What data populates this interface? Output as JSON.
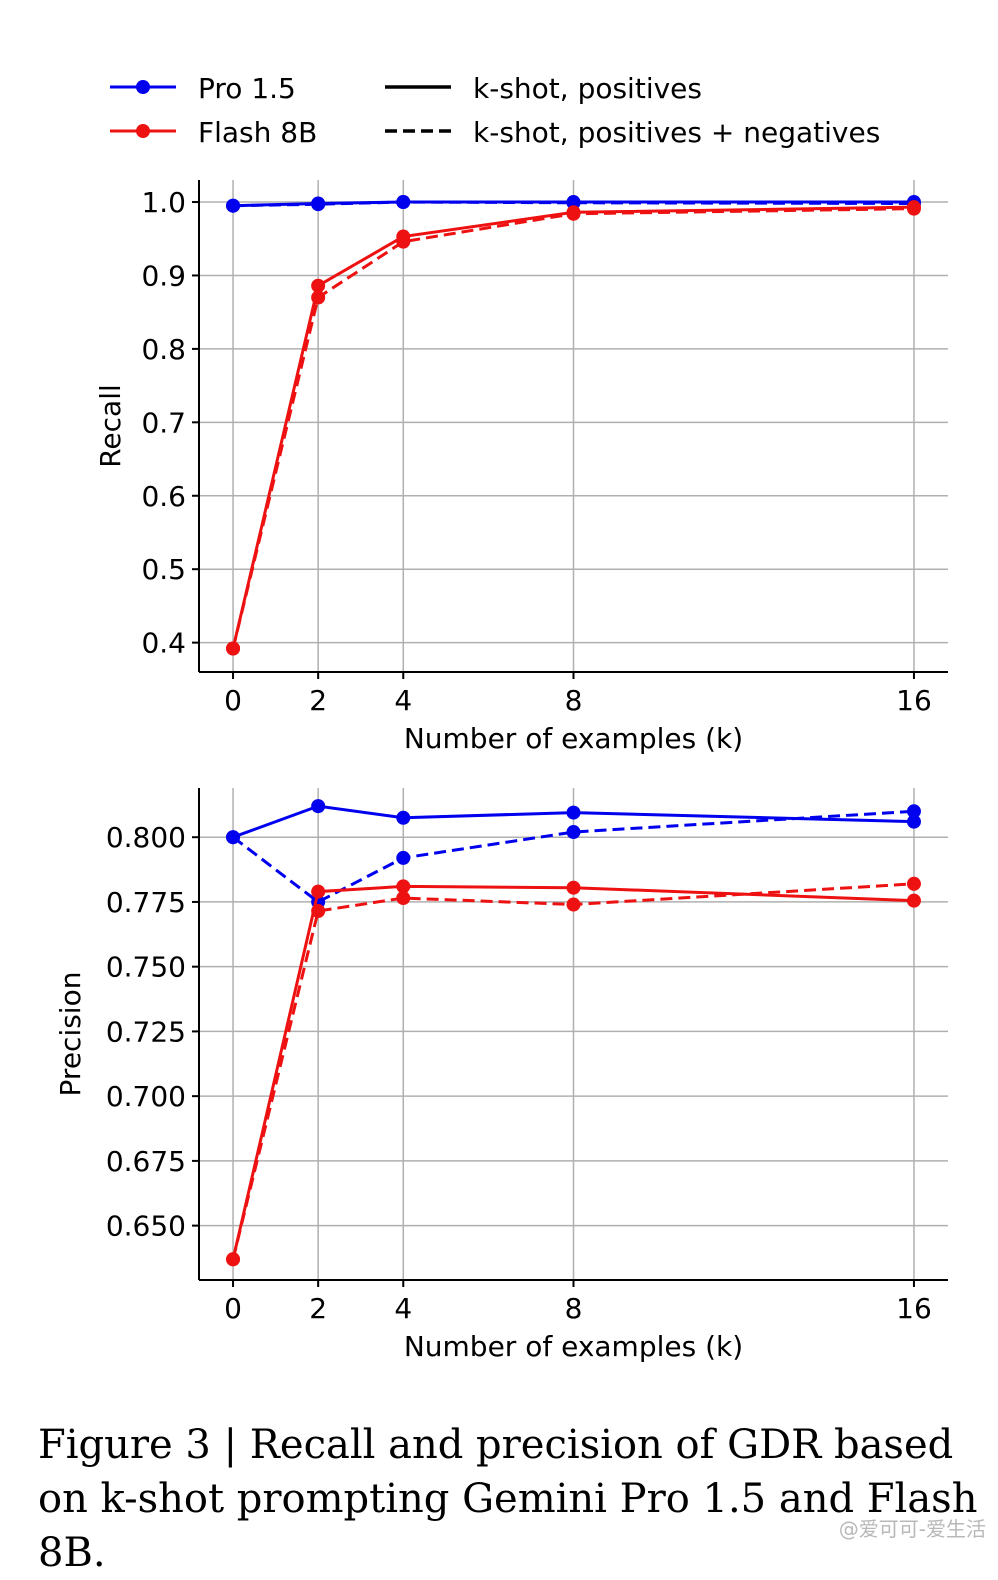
{
  "legend": {
    "models": [
      {
        "label": "Pro 1.5",
        "color": "#0000ee"
      },
      {
        "label": "Flash 8B",
        "color": "#ee1111"
      }
    ],
    "styles": [
      {
        "label": "k-shot, positives",
        "dash": "solid"
      },
      {
        "label": "k-shot, positives + negatives",
        "dash": "dashed"
      }
    ],
    "placement": "top"
  },
  "chart_data": [
    {
      "type": "line",
      "xlabel": "Number of examples (k)",
      "ylabel": "Recall",
      "x": [
        0,
        2,
        4,
        8,
        16
      ],
      "xticks": [
        "0",
        "2",
        "4",
        "8",
        "16"
      ],
      "yticks": [
        "0.4",
        "0.5",
        "0.6",
        "0.7",
        "0.8",
        "0.9",
        "1.0"
      ],
      "ylim": [
        0.36,
        1.03
      ],
      "xlim": [
        -0.8,
        16.8
      ],
      "grid": true,
      "series": [
        {
          "model": "Pro 1.5",
          "style": "k-shot, positives",
          "color": "#0000ee",
          "values": [
            0.995,
            0.998,
            1.0,
            1.0,
            1.0
          ]
        },
        {
          "model": "Pro 1.5",
          "style": "k-shot, positives + negatives",
          "color": "#0000ee",
          "values": [
            0.995,
            0.997,
            1.0,
            0.999,
            0.998
          ]
        },
        {
          "model": "Flash 8B",
          "style": "k-shot, positives",
          "color": "#ee1111",
          "values": [
            0.392,
            0.886,
            0.953,
            0.986,
            0.993
          ]
        },
        {
          "model": "Flash 8B",
          "style": "k-shot, positives + negatives",
          "color": "#ee1111",
          "values": [
            0.392,
            0.87,
            0.946,
            0.984,
            0.991
          ]
        }
      ]
    },
    {
      "type": "line",
      "xlabel": "Number of examples (k)",
      "ylabel": "Precision",
      "x": [
        0,
        2,
        4,
        8,
        16
      ],
      "xticks": [
        "0",
        "2",
        "4",
        "8",
        "16"
      ],
      "yticks": [
        "0.650",
        "0.675",
        "0.700",
        "0.725",
        "0.750",
        "0.775",
        "0.800"
      ],
      "ylim": [
        0.629,
        0.819
      ],
      "xlim": [
        -0.8,
        16.8
      ],
      "grid": true,
      "series": [
        {
          "model": "Pro 1.5",
          "style": "k-shot, positives",
          "color": "#0000ee",
          "values": [
            0.8,
            0.812,
            0.8075,
            0.8095,
            0.806
          ]
        },
        {
          "model": "Pro 1.5",
          "style": "k-shot, positives + negatives",
          "color": "#0000ee",
          "values": [
            0.8,
            0.775,
            0.792,
            0.802,
            0.81
          ]
        },
        {
          "model": "Flash 8B",
          "style": "k-shot, positives",
          "color": "#ee1111",
          "values": [
            0.637,
            0.779,
            0.781,
            0.7805,
            0.7755
          ]
        },
        {
          "model": "Flash 8B",
          "style": "k-shot, positives + negatives",
          "color": "#ee1111",
          "values": [
            0.637,
            0.7715,
            0.7765,
            0.774,
            0.782
          ]
        }
      ]
    }
  ],
  "caption": "Figure 3 | Recall and precision of GDR based on k-shot prompting Gemini Pro 1.5 and Flash 8B.",
  "watermark": "@爱可可-爱生活"
}
